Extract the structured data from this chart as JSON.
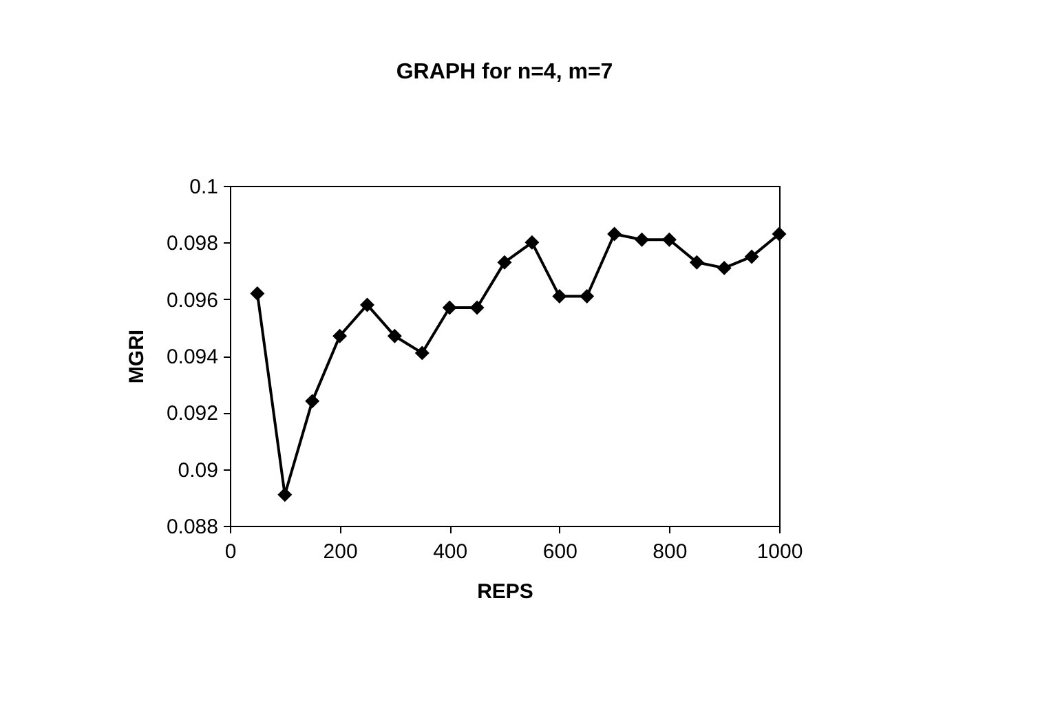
{
  "chart_data": {
    "type": "line",
    "title": "GRAPH for n=4, m=7",
    "xlabel": "REPS",
    "ylabel": "MGRI",
    "x": [
      50,
      100,
      150,
      200,
      250,
      300,
      350,
      400,
      450,
      500,
      550,
      600,
      650,
      700,
      750,
      800,
      850,
      900,
      950,
      1000
    ],
    "series": [
      {
        "color": "#000000",
        "values": [
          0.0962,
          0.0891,
          0.0924,
          0.0947,
          0.0958,
          0.0947,
          0.0941,
          0.0957,
          0.0957,
          0.0973,
          0.098,
          0.0961,
          0.0961,
          0.0983,
          0.0981,
          0.0981,
          0.0973,
          0.0971,
          0.0975,
          0.0983
        ]
      }
    ],
    "xlim": [
      0,
      1000
    ],
    "xticks": [
      0,
      200,
      400,
      600,
      800,
      1000
    ],
    "ylim": [
      0.088,
      0.1
    ],
    "yticks": [
      0.088,
      0.09,
      0.092,
      0.094,
      0.096,
      0.098,
      0.1
    ],
    "grid": false,
    "legend": false,
    "marker": "diamond",
    "line_style": "solid"
  }
}
